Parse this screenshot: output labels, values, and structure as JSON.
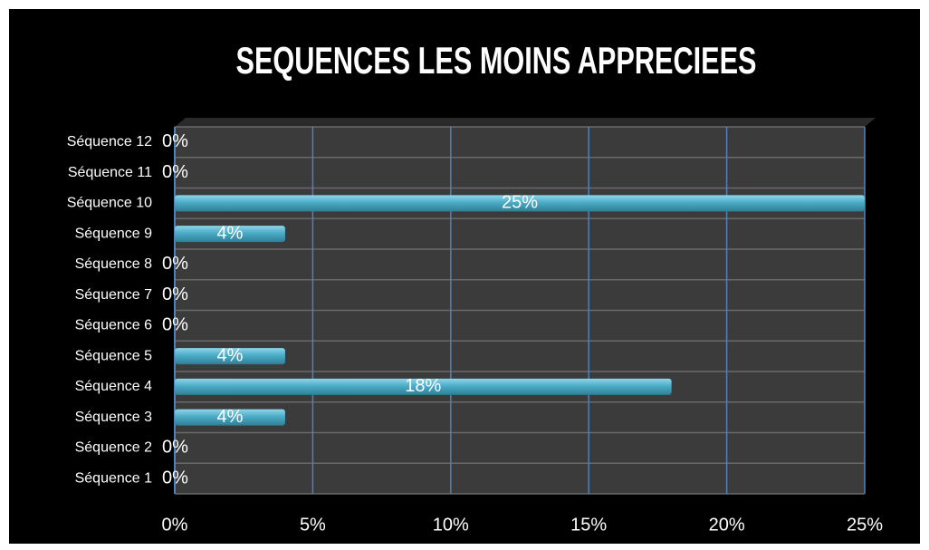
{
  "chart_data": {
    "type": "hbar",
    "title": "SEQUENCES LES MOINS APPRECIEES",
    "categories": [
      "Séquence 1",
      "Séquence 2",
      "Séquence 3",
      "Séquence 4",
      "Séquence 5",
      "Séquence 6",
      "Séquence 7",
      "Séquence 8",
      "Séquence 9",
      "Séquence 10",
      "Séquence 11",
      "Séquence 12"
    ],
    "values": [
      0,
      0,
      4,
      18,
      4,
      0,
      0,
      0,
      4,
      25,
      0,
      0
    ],
    "value_labels": [
      "0%",
      "0%",
      "4%",
      "18%",
      "4%",
      "0%",
      "0%",
      "0%",
      "4%",
      "25%",
      "0%",
      "0%"
    ],
    "color": "#4bacc6",
    "xlim": [
      0,
      25
    ],
    "xticks": [
      {
        "value": 0,
        "label": "0%"
      },
      {
        "value": 5,
        "label": "5%"
      },
      {
        "value": 10,
        "label": "10%"
      },
      {
        "value": 15,
        "label": "15%"
      },
      {
        "value": 20,
        "label": "20%"
      },
      {
        "value": 25,
        "label": "25%"
      }
    ],
    "grid": true
  }
}
